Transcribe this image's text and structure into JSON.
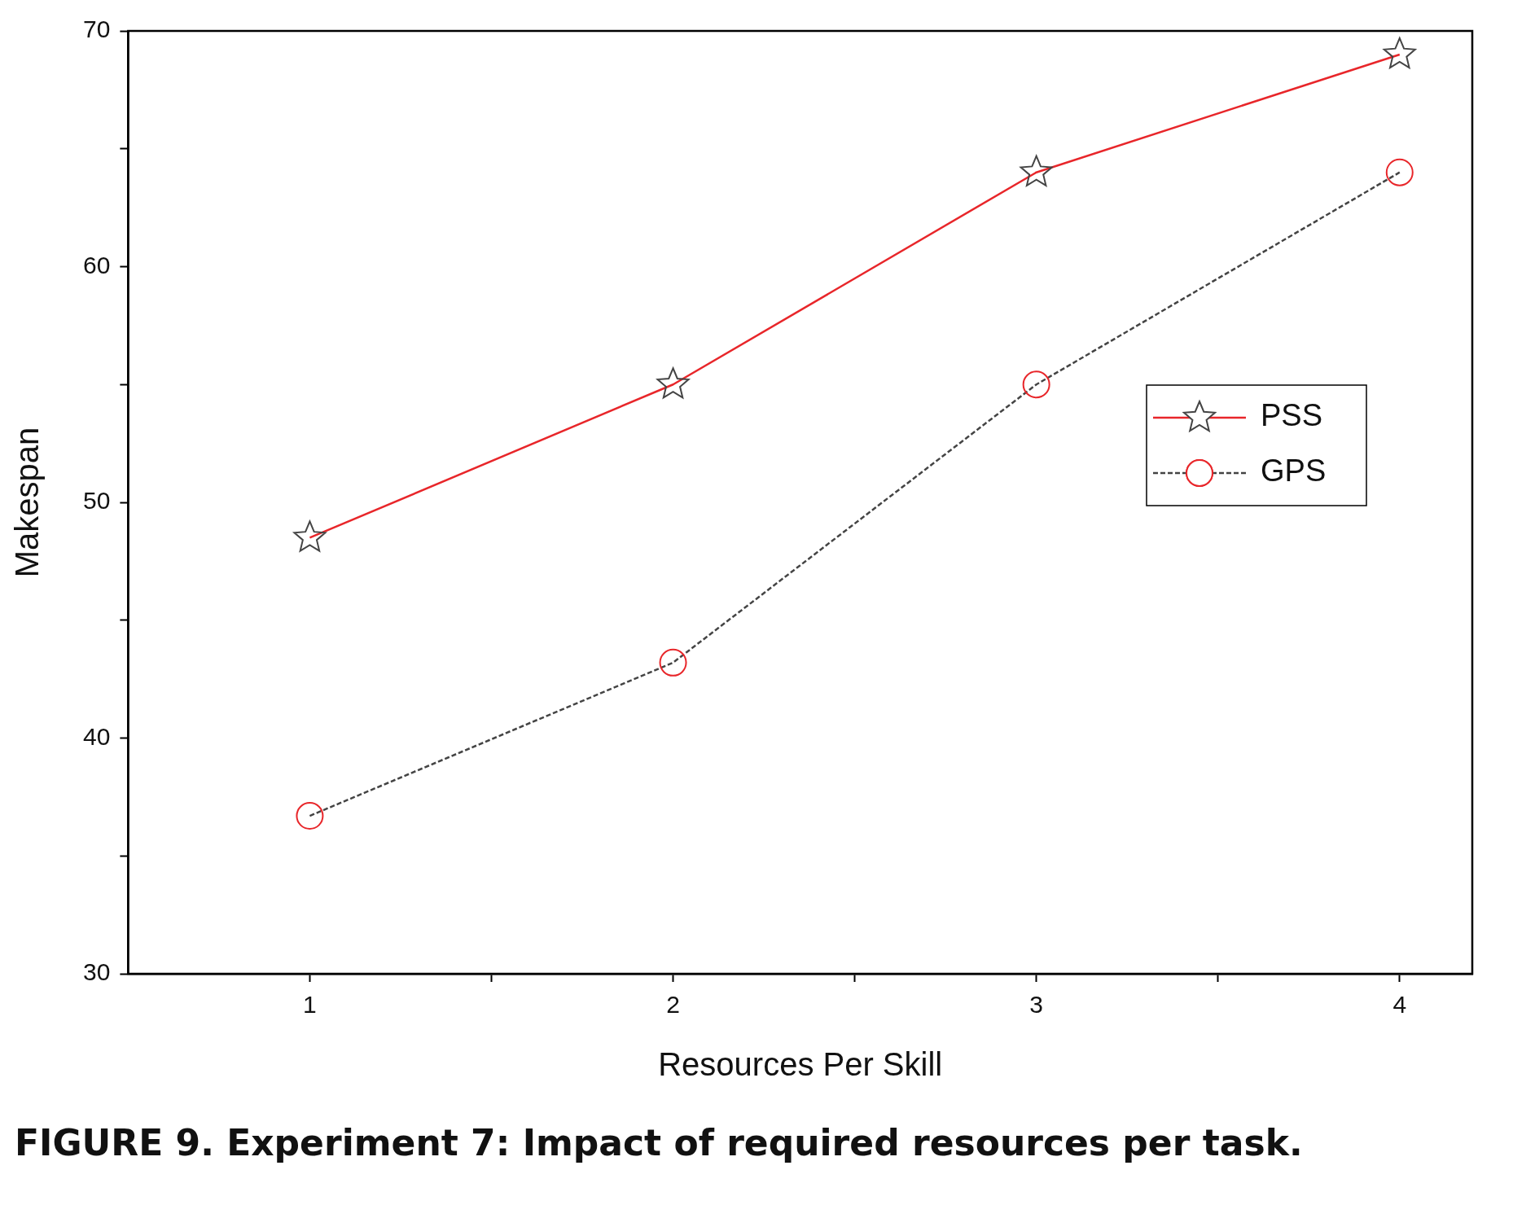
{
  "chart_data": {
    "type": "line",
    "title": "FIGURE 9.  Experiment 7: Impact of required resources per task.",
    "xlabel": "Resources Per Skill",
    "ylabel": "Makespan",
    "x": [
      1,
      2,
      3,
      4
    ],
    "series": [
      {
        "name": "PSS",
        "color": "#e8262a",
        "values": [
          48.5,
          55.0,
          64.0,
          69.0
        ],
        "marker": "star",
        "line_style": "solid"
      },
      {
        "name": "GPS",
        "color": "#444444",
        "values": [
          36.7,
          43.2,
          55.0,
          64.0
        ],
        "marker": "circle",
        "line_style": "dashed"
      }
    ],
    "xlim": [
      0.5,
      4.2
    ],
    "xticks": [
      1,
      {
        "value": 1.5,
        "label": null
      },
      2,
      {
        "value": 2.5,
        "label": null
      },
      3,
      {
        "value": 3.5,
        "label": null
      },
      4
    ],
    "ylim": [
      30,
      70
    ],
    "yticks": [
      30,
      {
        "value": 35,
        "label": null
      },
      40,
      {
        "value": 45,
        "label": null
      },
      50,
      {
        "value": 55,
        "label": null
      },
      60,
      {
        "value": 65,
        "label": null
      },
      70
    ],
    "grid": false,
    "legend": "right"
  }
}
